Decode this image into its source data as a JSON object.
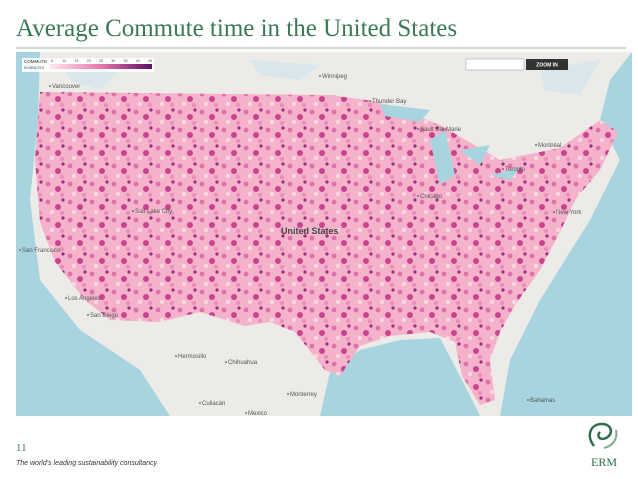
{
  "header": {
    "title": "Average Commute time in the United States"
  },
  "map": {
    "legend": {
      "title": "COMMUTE",
      "subtitle": "IN MINUTES",
      "ticks": [
        "5",
        "10",
        "15",
        "20",
        "25",
        "30",
        "35",
        "40",
        "45"
      ]
    },
    "zoom_button": "ZOOM IN",
    "country_label": "United States",
    "labels": [
      "Vancouver",
      "Winnipeg",
      "Thunder Bay",
      "Sault Ste Marie",
      "Montréal",
      "Toronto",
      "Chicago",
      "New York",
      "Salt Lake City",
      "San Francisco",
      "Los Angeles",
      "San Diego",
      "Hermosillo",
      "Chihuahua",
      "Monterrey",
      "Culiacán",
      "Bahamas",
      "Mexico"
    ]
  },
  "footer": {
    "page_number": "11",
    "tagline": "The world's leading sustainability consultancy",
    "logo_text": "ERM"
  }
}
